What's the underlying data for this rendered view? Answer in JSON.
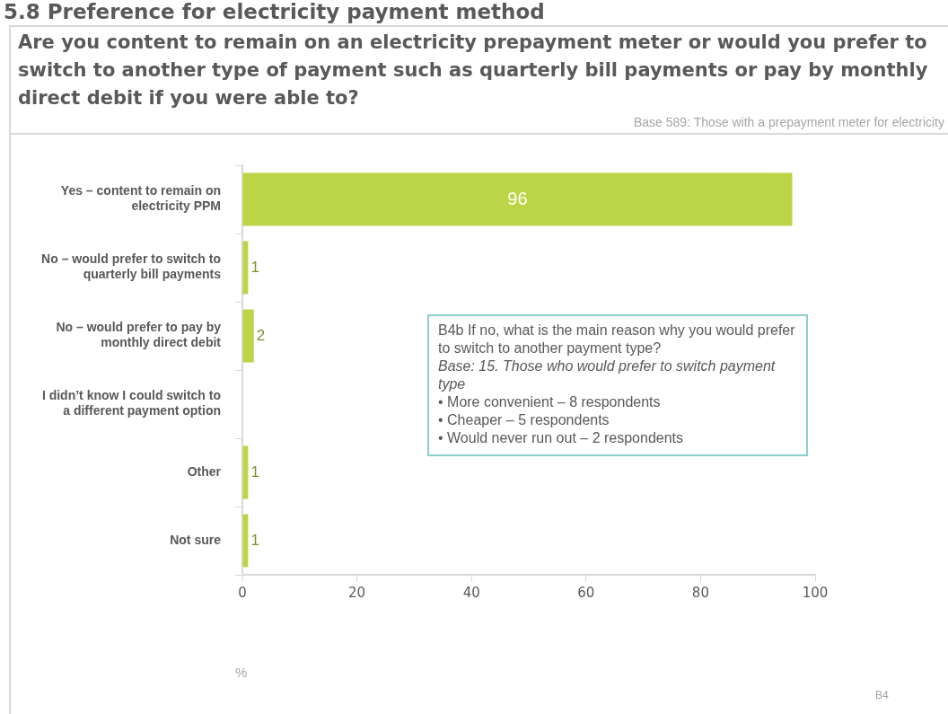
{
  "chart_data": {
    "type": "bar",
    "orientation": "horizontal",
    "title": "Are you content to remain on an electricity prepayment meter or would you prefer to switch to another type of payment such as quarterly bill payments or pay by monthly direct debit if you were able to?",
    "subtitle": "Base 589: Those with a prepayment meter for electricity",
    "categories": [
      "Yes – content to remain on electricity PPM",
      "No – would prefer to switch to quarterly bill payments",
      "No – would prefer to pay by monthly direct debit",
      "I didn’t know I could switch to a different payment option",
      "Other",
      "Not sure"
    ],
    "values": [
      96,
      1,
      2,
      0,
      1,
      1
    ],
    "value_labels": [
      "96",
      "1",
      "2",
      null,
      "1",
      "1"
    ],
    "color": "#bcd546",
    "xlim": [
      0,
      100
    ],
    "xticks": [
      0,
      20,
      40,
      60,
      80,
      100
    ],
    "xlabel": "%",
    "legend": false,
    "annotations": [
      "5.8 Preference for electricity payment method",
      "B4b If no, what is the main reason why you would prefer to switch to another payment type?",
      "Base: 15. Those who would prefer to switch payment type",
      "• More convenient – 8 respondents",
      "• Cheaper – 5 respondents",
      "• Would never run out – 2 respondents",
      "B4"
    ]
  }
}
